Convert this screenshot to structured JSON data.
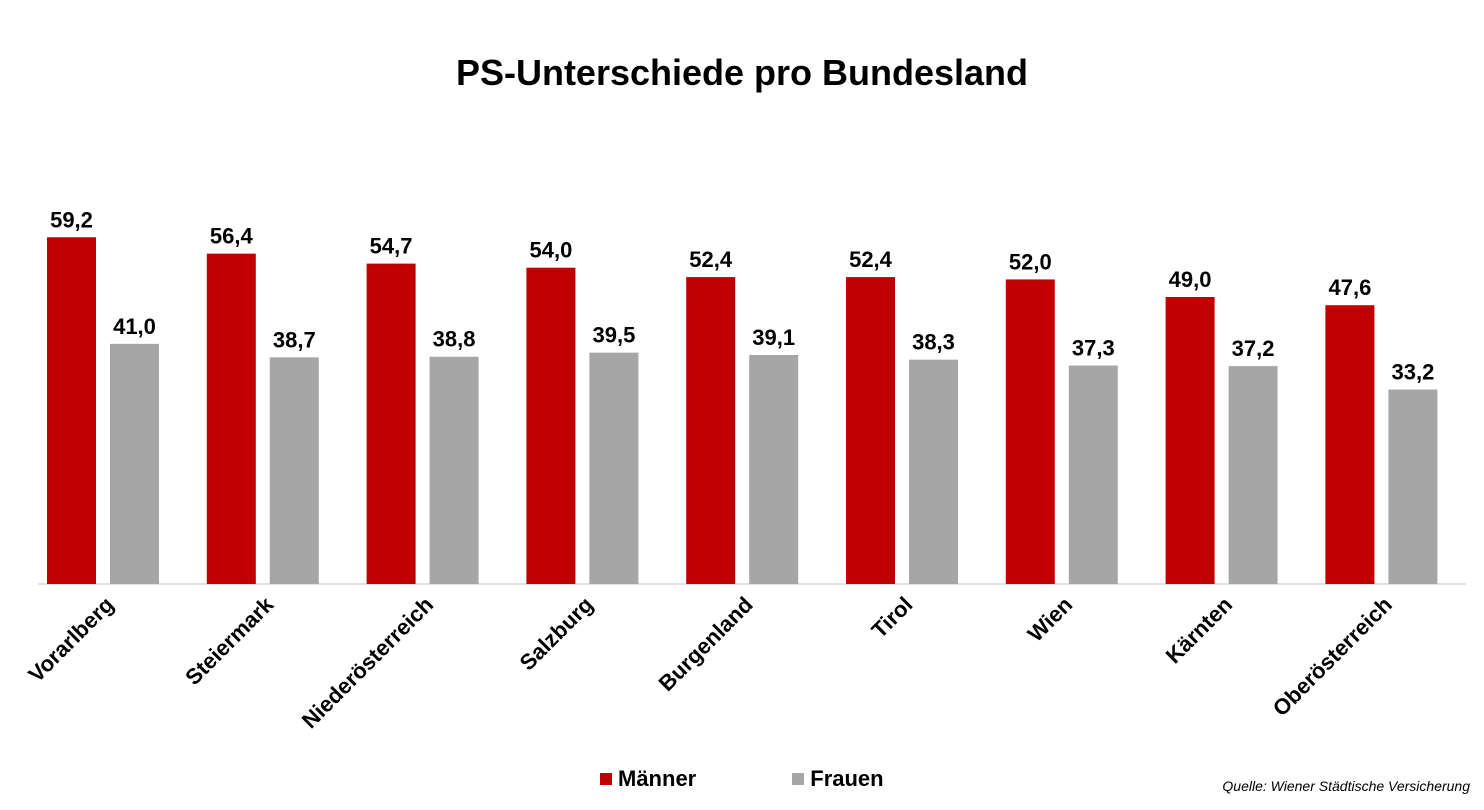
{
  "chart_data": {
    "type": "bar",
    "title": "PS-Unterschiede pro Bundesland",
    "categories": [
      "Vorarlberg",
      "Steiermark",
      "Niederösterreich",
      "Salzburg",
      "Burgenland",
      "Tirol",
      "Wien",
      "Kärnten",
      "Oberösterreich"
    ],
    "series": [
      {
        "name": "Männer",
        "color": "#c00000",
        "values": [
          59.2,
          56.4,
          54.7,
          54.0,
          52.4,
          52.4,
          52.0,
          49.0,
          47.6
        ],
        "labels": [
          "59,2",
          "56,4",
          "54,7",
          "54,0",
          "52,4",
          "52,4",
          "52,0",
          "49,0",
          "47,6"
        ]
      },
      {
        "name": "Frauen",
        "color": "#a6a6a6",
        "values": [
          41.0,
          38.7,
          38.8,
          39.5,
          39.1,
          38.3,
          37.3,
          37.2,
          33.2
        ],
        "labels": [
          "41,0",
          "38,7",
          "38,8",
          "39,5",
          "39,1",
          "38,3",
          "37,3",
          "37,2",
          "33,2"
        ]
      }
    ],
    "ylim": [
      0,
      70
    ],
    "xlabel": "",
    "ylabel": "",
    "grid": false,
    "legend_position": "bottom"
  },
  "source": "Quelle: Wiener Städtische Versicherung"
}
